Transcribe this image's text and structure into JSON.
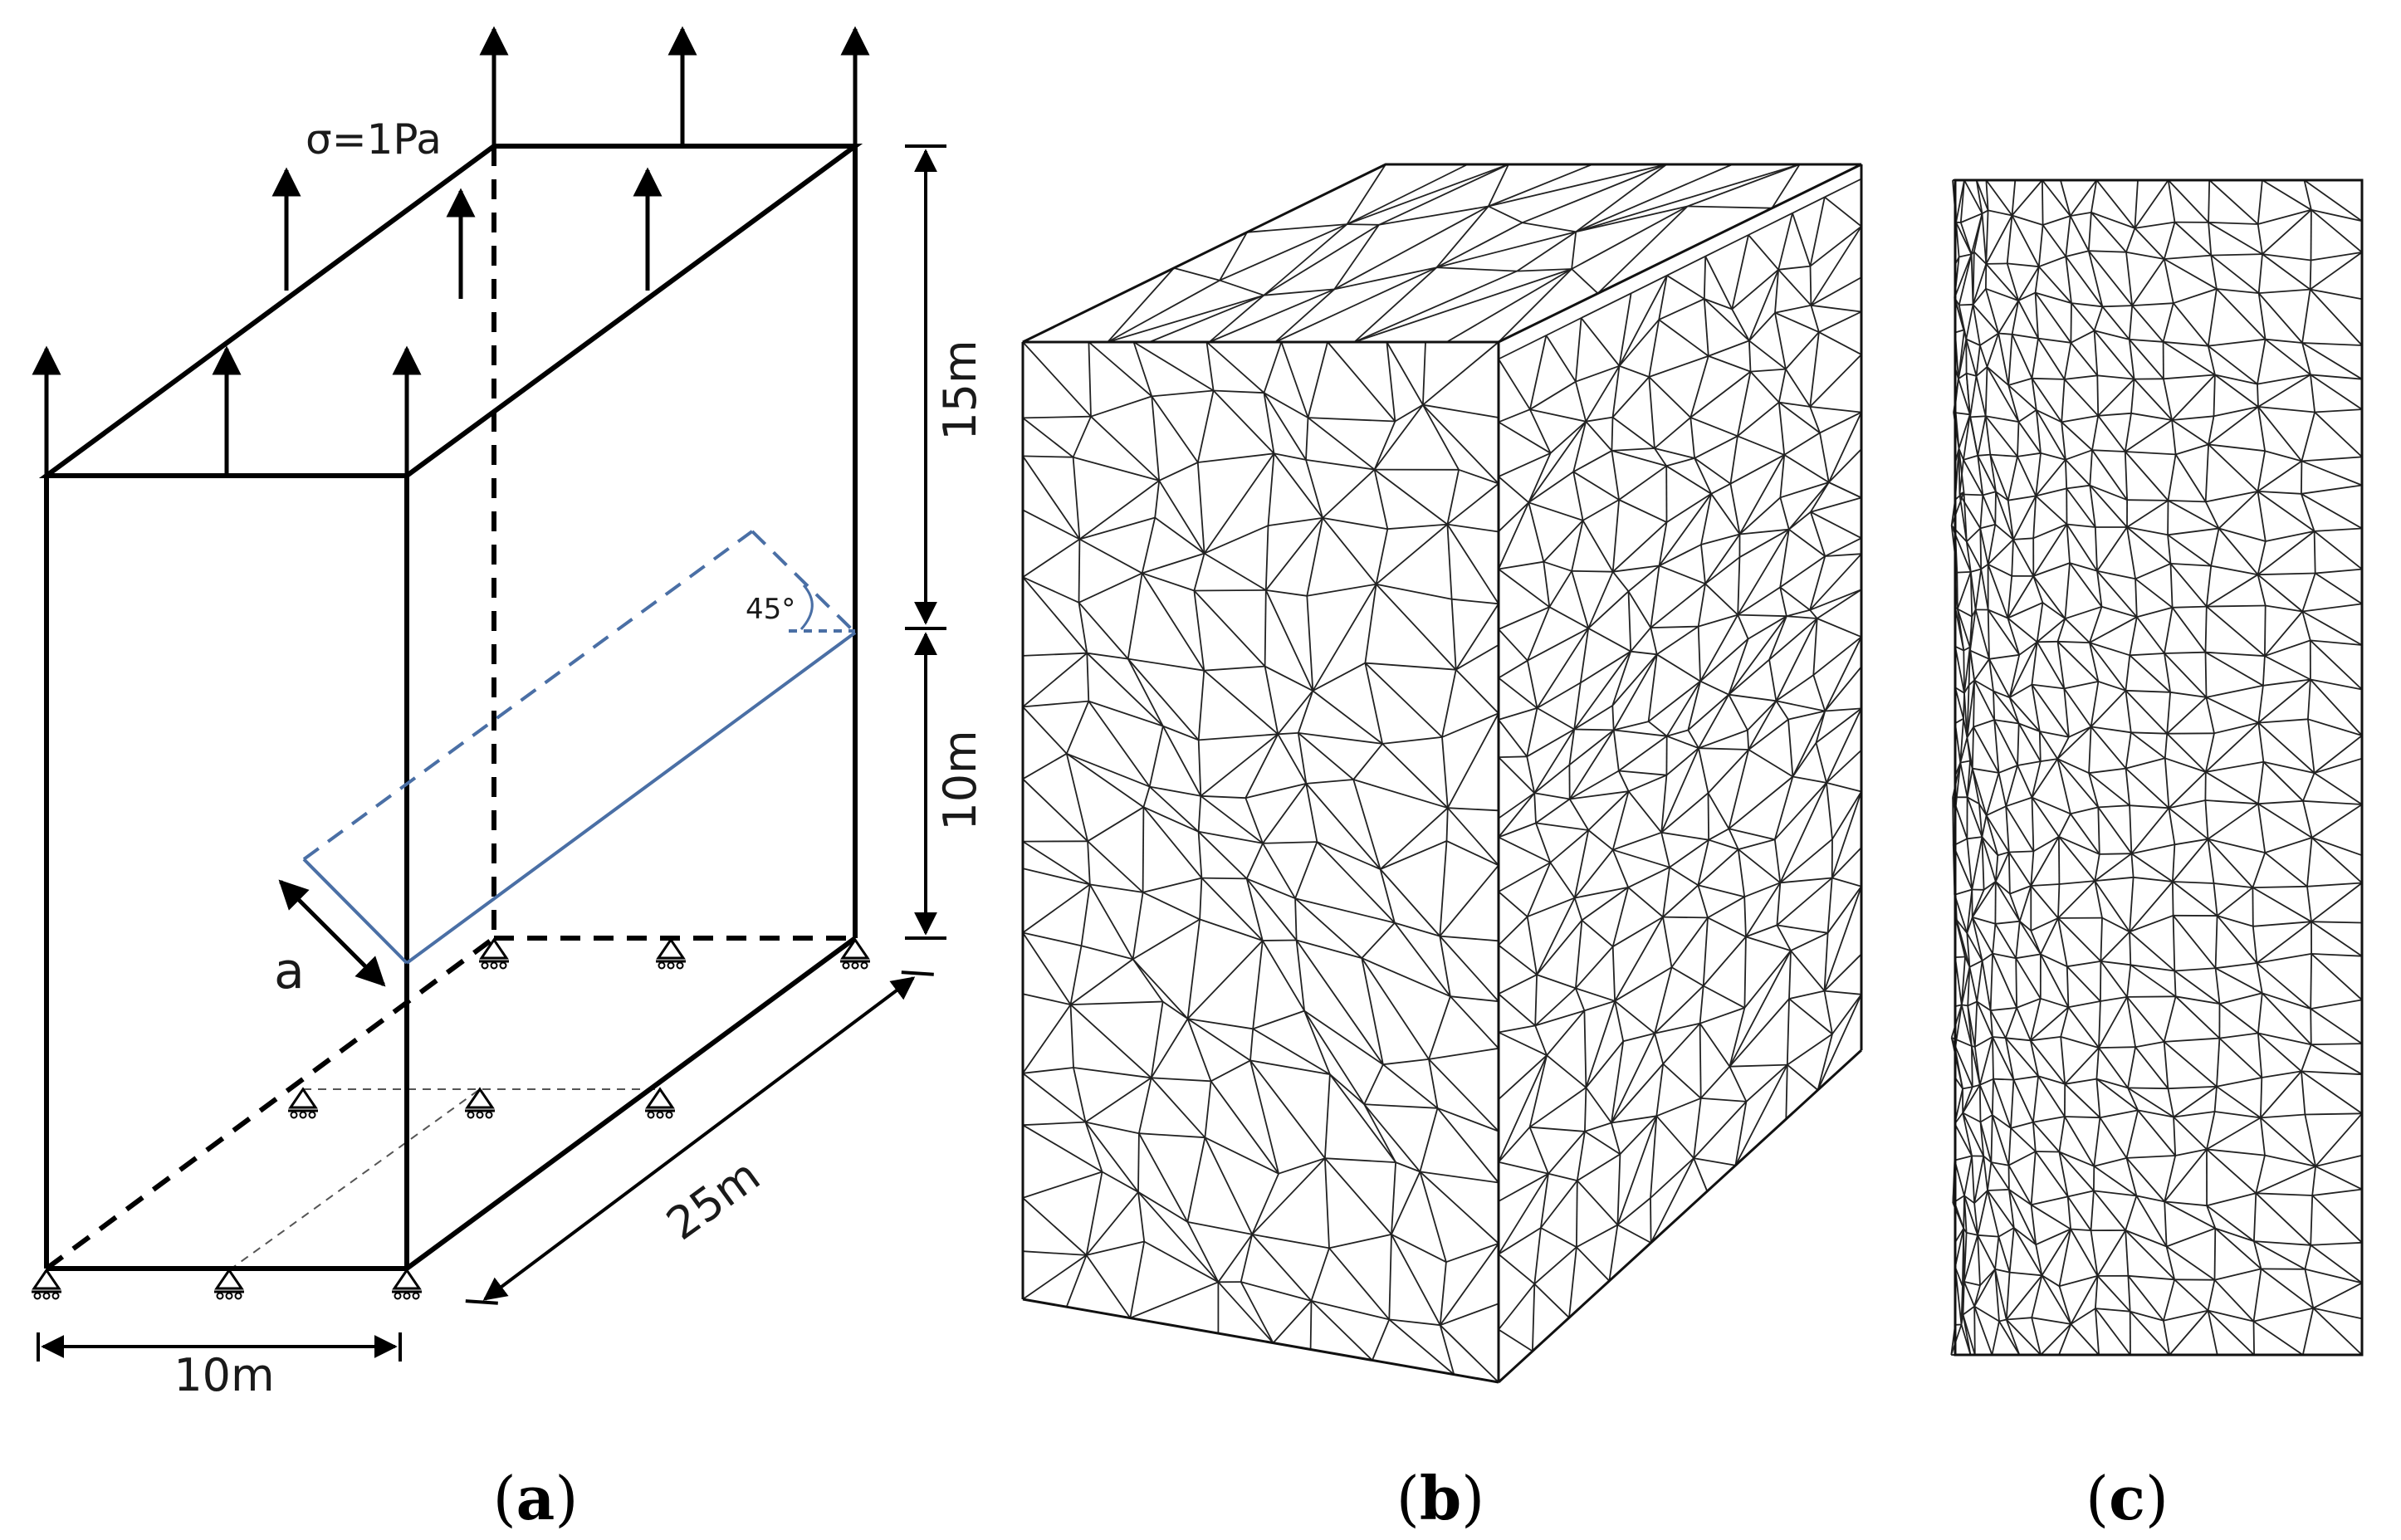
{
  "panel_a": {
    "stress_label": "σ=1Pa",
    "dim_top": "15m",
    "dim_bottom": "10m",
    "dim_depth": "25m",
    "dim_width": "10m",
    "angle_label": "45°",
    "crack_label": "a",
    "crack_color": "#4a6fa5"
  },
  "captions": {
    "a": {
      "open": "(",
      "letter": "a",
      "close": ")"
    },
    "b": {
      "open": "(",
      "letter": "b",
      "close": ")"
    },
    "c": {
      "open": "(",
      "letter": "c",
      "close": ")"
    }
  }
}
